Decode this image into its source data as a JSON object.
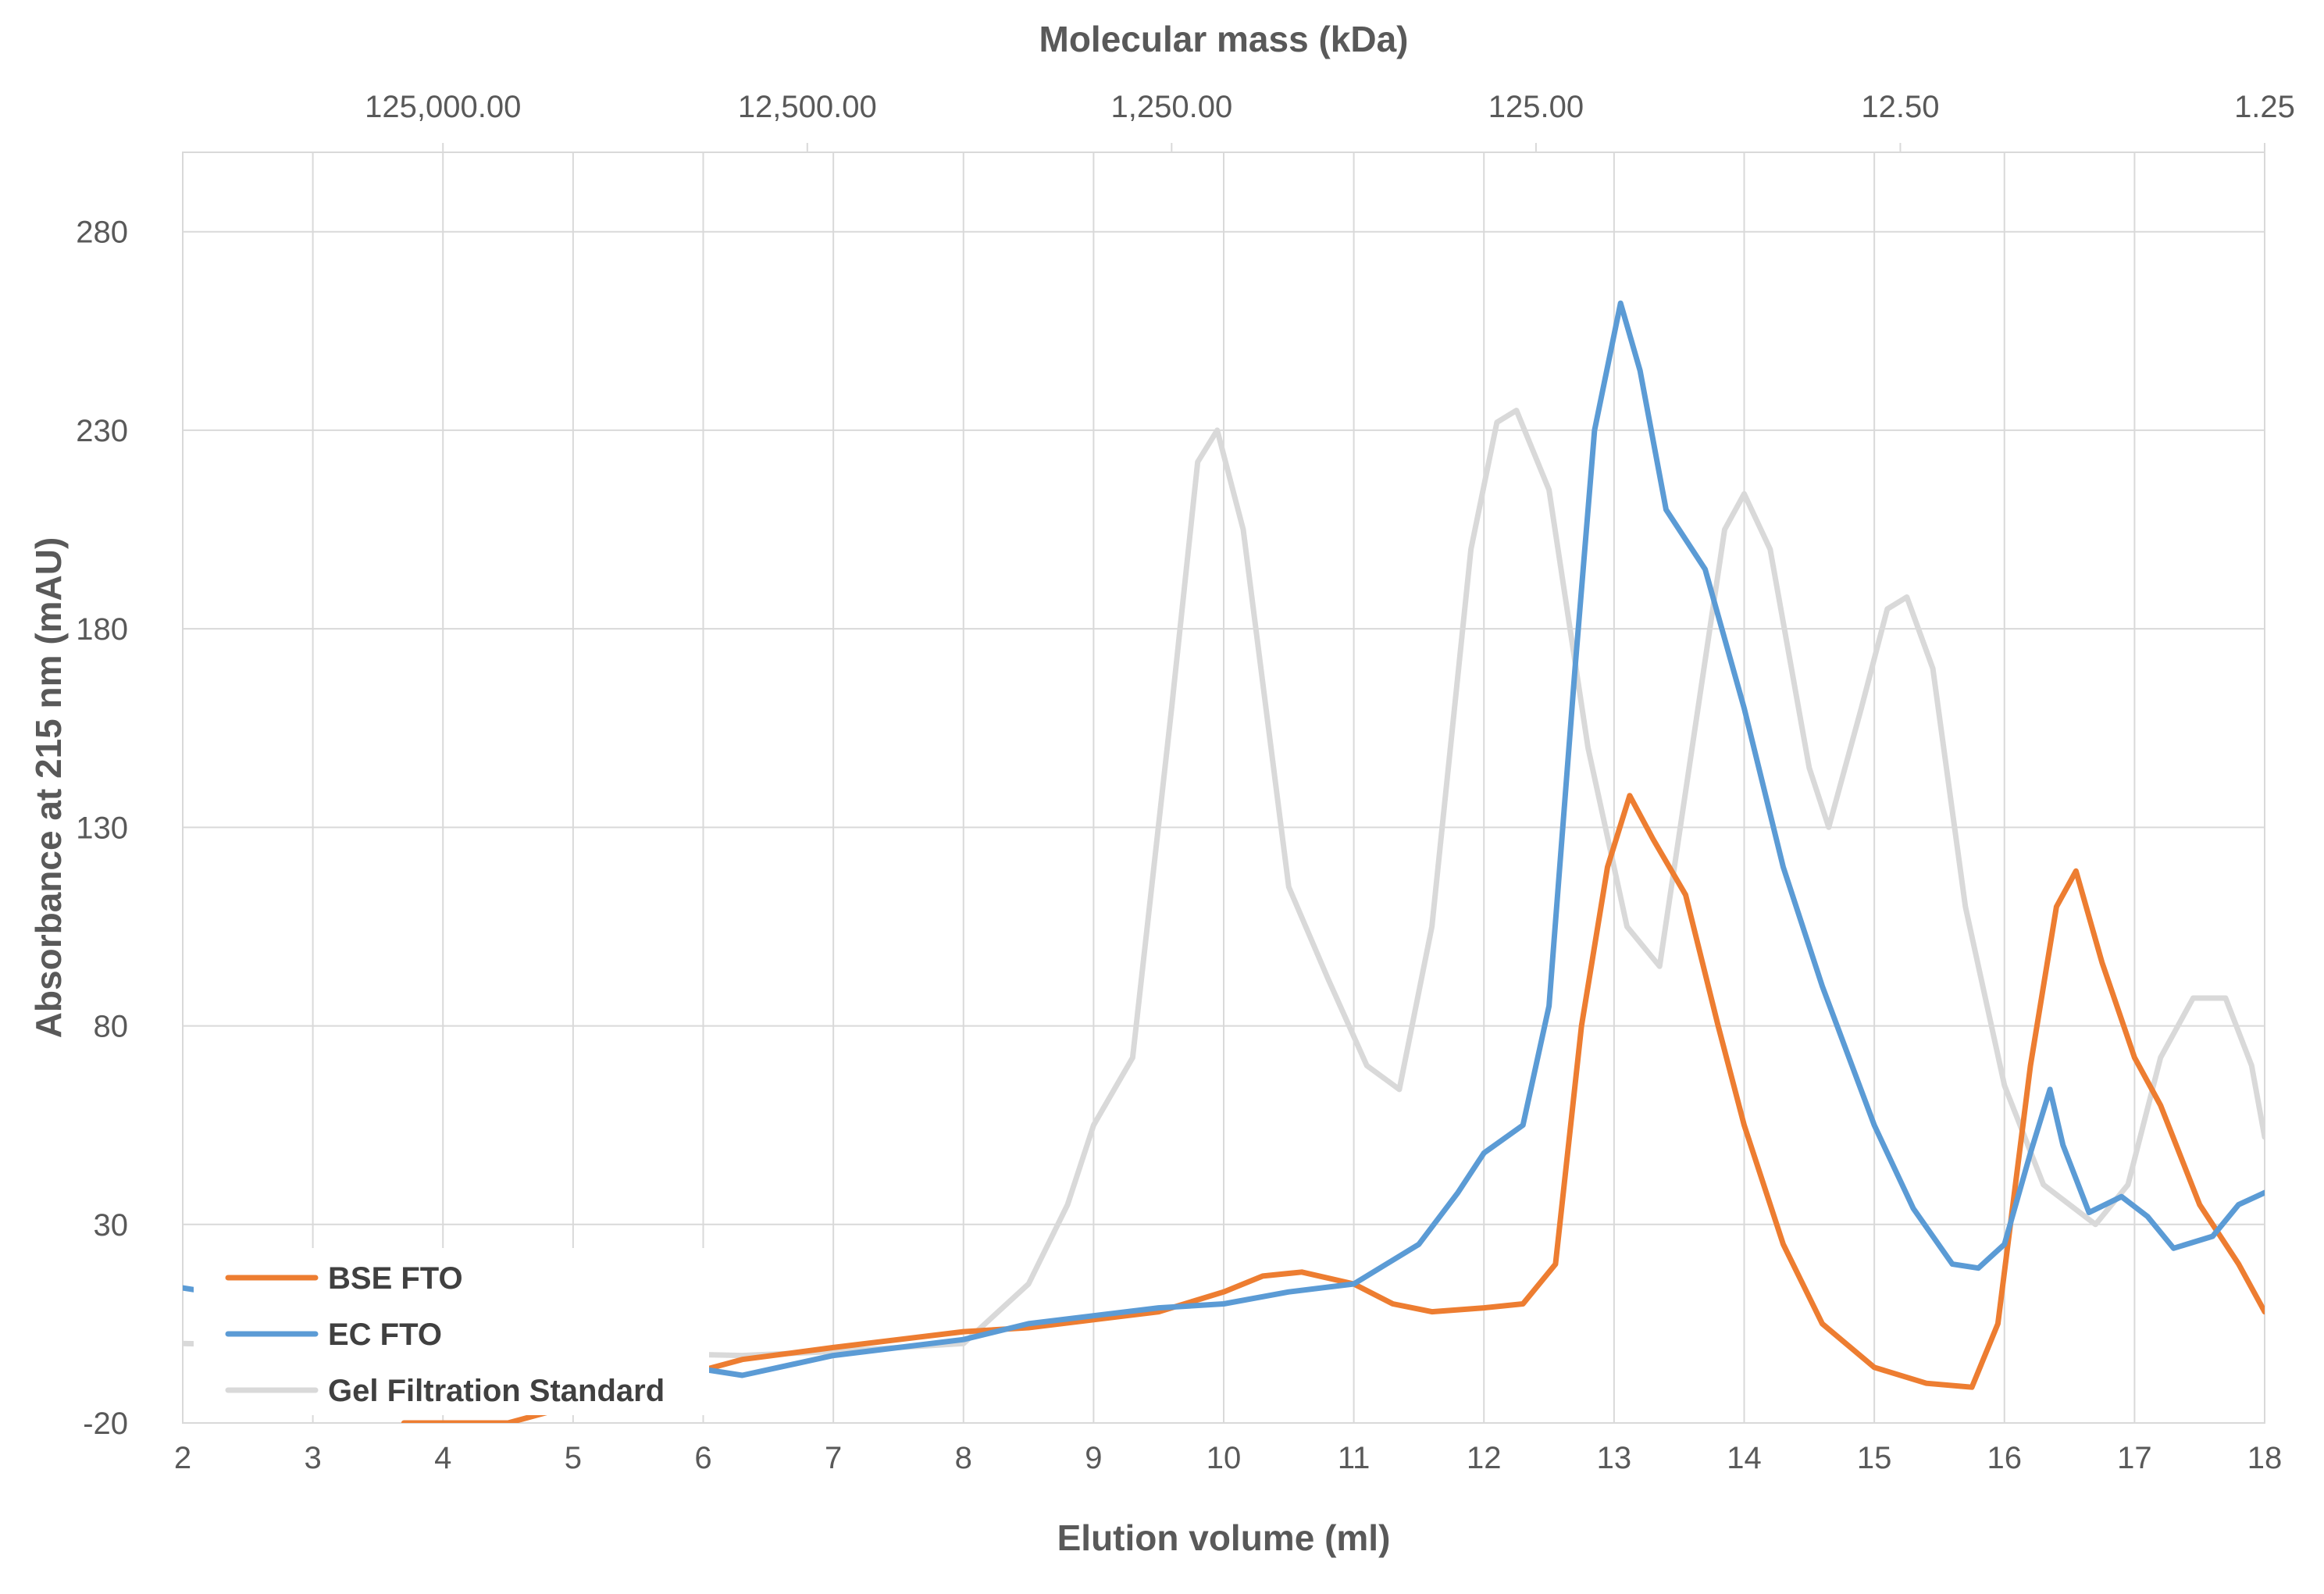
{
  "chart_data": {
    "type": "line",
    "title": "",
    "xlabel": "Elution volume (ml)",
    "ylabel": "Absorbance at 215 nm (mAU)",
    "x2label": "Molecular mass (kDa)",
    "xlim": [
      2,
      18
    ],
    "ylim": [
      -20,
      300
    ],
    "x_ticks": [
      2,
      3,
      4,
      5,
      6,
      7,
      8,
      9,
      10,
      11,
      12,
      13,
      14,
      15,
      16,
      17,
      18
    ],
    "x_tick_labels": [
      "2",
      "3",
      "4",
      "5",
      "6",
      "7",
      "8",
      "9",
      "10",
      "11",
      "12",
      "13",
      "14",
      "15",
      "16",
      "17",
      "18"
    ],
    "y_ticks": [
      -20,
      30,
      80,
      130,
      180,
      230,
      280
    ],
    "y_tick_labels": [
      "-20",
      "30",
      "80",
      "130",
      "180",
      "230",
      "280"
    ],
    "top_axis": {
      "scale": "log",
      "ticks": [
        {
          "x": 4.0,
          "label": "125,000.00"
        },
        {
          "x": 6.8,
          "label": "12,500.00"
        },
        {
          "x": 9.6,
          "label": "1,250.00"
        },
        {
          "x": 12.4,
          "label": "125.00"
        },
        {
          "x": 15.2,
          "label": "12.50"
        },
        {
          "x": 18.0,
          "label": "1.25"
        }
      ]
    },
    "grid": true,
    "legend_position": "bottom-left",
    "series": [
      {
        "name": "BSE FTO",
        "color": "#ED7D31",
        "x": [
          3.7,
          4.5,
          6.3,
          7.0,
          8.0,
          8.5,
          9.0,
          9.5,
          10.0,
          10.3,
          10.6,
          11.0,
          11.3,
          11.6,
          12.0,
          12.3,
          12.55,
          12.75,
          12.95,
          13.12,
          13.3,
          13.55,
          13.8,
          14.0,
          14.3,
          14.6,
          15.0,
          15.4,
          15.75,
          15.95,
          16.2,
          16.4,
          16.55,
          16.75,
          17.0,
          17.2,
          17.5,
          17.8,
          18.0
        ],
        "y": [
          -20,
          -20,
          -4,
          -1,
          3,
          4,
          6,
          8,
          13,
          17,
          18,
          15,
          10,
          8,
          9,
          10,
          20,
          80,
          120,
          138,
          127,
          113,
          80,
          55,
          25,
          5,
          -6,
          -10,
          -11,
          5,
          70,
          110,
          119,
          96,
          72,
          60,
          35,
          20,
          8
        ]
      },
      {
        "name": "EC FTO",
        "color": "#5B9BD5",
        "x": [
          2.0,
          6.3,
          7.0,
          8.0,
          8.5,
          9.0,
          9.5,
          10.0,
          10.5,
          11.0,
          11.5,
          11.8,
          12.0,
          12.3,
          12.5,
          12.7,
          12.85,
          13.05,
          13.2,
          13.4,
          13.7,
          14.0,
          14.3,
          14.6,
          15.0,
          15.3,
          15.6,
          15.8,
          16.0,
          16.2,
          16.35,
          16.45,
          16.65,
          16.9,
          17.1,
          17.3,
          17.6,
          17.8,
          18.0
        ],
        "y": [
          14,
          -8,
          -3,
          1,
          5,
          7,
          9,
          10,
          13,
          15,
          25,
          38,
          48,
          55,
          85,
          170,
          230,
          262,
          245,
          210,
          195,
          160,
          120,
          90,
          55,
          34,
          20,
          19,
          25,
          48,
          64,
          50,
          33,
          37,
          32,
          24,
          27,
          35,
          38
        ]
      },
      {
        "name": "Gel Filtration Standard",
        "color": "#D9D9D9",
        "x": [
          2.0,
          6.3,
          7.0,
          8.0,
          8.5,
          8.8,
          9.0,
          9.3,
          9.6,
          9.8,
          9.95,
          10.15,
          10.5,
          10.8,
          11.1,
          11.35,
          11.6,
          11.9,
          12.1,
          12.25,
          12.5,
          12.8,
          13.1,
          13.35,
          13.6,
          13.85,
          14.0,
          14.2,
          14.5,
          14.65,
          14.9,
          15.1,
          15.25,
          15.45,
          15.7,
          16.0,
          16.3,
          16.7,
          16.95,
          17.2,
          17.45,
          17.7,
          17.9,
          18.0
        ],
        "y": [
          0,
          -3,
          -2,
          0,
          15,
          35,
          55,
          72,
          160,
          222,
          230,
          205,
          115,
          92,
          70,
          64,
          105,
          200,
          232,
          235,
          215,
          150,
          105,
          95,
          150,
          205,
          214,
          200,
          145,
          130,
          160,
          185,
          188,
          170,
          110,
          65,
          40,
          30,
          40,
          72,
          87,
          87,
          70,
          52
        ]
      }
    ]
  }
}
